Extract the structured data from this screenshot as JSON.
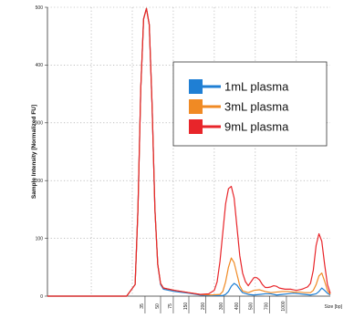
{
  "chart_data": {
    "type": "line",
    "ylabel": "Sample Intensity [Normalized FU]",
    "xlabel": "Size [bp]",
    "y_ticks": [
      "0",
      "100",
      "200",
      "300",
      "400",
      "500"
    ],
    "x_ticks": [
      "35",
      "50",
      "75",
      "150",
      "200",
      "300",
      "400",
      "500",
      "700",
      "1000"
    ],
    "ylim": [
      0,
      500
    ],
    "xlim": [
      0,
      100
    ],
    "grid": true,
    "legend_position": "top-right",
    "series": [
      {
        "name": "1mL plasma",
        "color": "#1f7fd4",
        "points": [
          [
            0,
            0
          ],
          [
            10,
            0
          ],
          [
            20,
            0
          ],
          [
            28,
            0
          ],
          [
            31,
            20
          ],
          [
            32,
            150
          ],
          [
            33,
            360
          ],
          [
            34,
            480
          ],
          [
            35,
            498
          ],
          [
            36,
            470
          ],
          [
            37,
            330
          ],
          [
            38,
            150
          ],
          [
            39,
            55
          ],
          [
            40,
            20
          ],
          [
            41,
            12
          ],
          [
            45,
            8
          ],
          [
            50,
            5
          ],
          [
            54,
            2
          ],
          [
            58,
            1
          ],
          [
            62,
            1
          ],
          [
            63,
            3
          ],
          [
            64,
            8
          ],
          [
            65,
            17
          ],
          [
            66,
            22
          ],
          [
            67,
            19
          ],
          [
            68,
            12
          ],
          [
            69,
            6
          ],
          [
            71,
            3
          ],
          [
            73,
            2
          ],
          [
            75,
            3
          ],
          [
            77,
            4
          ],
          [
            79,
            4
          ],
          [
            81,
            2
          ],
          [
            83,
            3
          ],
          [
            85,
            4
          ],
          [
            87,
            5
          ],
          [
            89,
            4
          ],
          [
            91,
            3
          ],
          [
            93,
            2
          ],
          [
            95,
            4
          ],
          [
            96,
            8
          ],
          [
            97,
            14
          ],
          [
            98,
            10
          ],
          [
            99,
            5
          ],
          [
            100,
            2
          ]
        ]
      },
      {
        "name": "3mL plasma",
        "color": "#f08a24",
        "points": [
          [
            0,
            0
          ],
          [
            10,
            0
          ],
          [
            20,
            0
          ],
          [
            28,
            0
          ],
          [
            31,
            20
          ],
          [
            32,
            150
          ],
          [
            33,
            360
          ],
          [
            34,
            480
          ],
          [
            35,
            498
          ],
          [
            36,
            470
          ],
          [
            37,
            330
          ],
          [
            38,
            150
          ],
          [
            39,
            55
          ],
          [
            40,
            22
          ],
          [
            41,
            14
          ],
          [
            45,
            10
          ],
          [
            50,
            6
          ],
          [
            54,
            3
          ],
          [
            58,
            2
          ],
          [
            61,
            3
          ],
          [
            62,
            8
          ],
          [
            63,
            25
          ],
          [
            64,
            50
          ],
          [
            65,
            66
          ],
          [
            66,
            58
          ],
          [
            67,
            38
          ],
          [
            68,
            18
          ],
          [
            69,
            9
          ],
          [
            71,
            6
          ],
          [
            73,
            10
          ],
          [
            75,
            11
          ],
          [
            77,
            8
          ],
          [
            79,
            6
          ],
          [
            81,
            7
          ],
          [
            83,
            8
          ],
          [
            85,
            8
          ],
          [
            87,
            7
          ],
          [
            89,
            7
          ],
          [
            91,
            6
          ],
          [
            93,
            6
          ],
          [
            94,
            10
          ],
          [
            95,
            20
          ],
          [
            96,
            35
          ],
          [
            97,
            40
          ],
          [
            98,
            26
          ],
          [
            99,
            10
          ],
          [
            100,
            3
          ]
        ]
      },
      {
        "name": "9mL plasma",
        "color": "#e8252a",
        "points": [
          [
            0,
            0
          ],
          [
            10,
            0
          ],
          [
            20,
            0
          ],
          [
            28,
            0
          ],
          [
            31,
            20
          ],
          [
            32,
            150
          ],
          [
            33,
            360
          ],
          [
            34,
            480
          ],
          [
            35,
            498
          ],
          [
            36,
            470
          ],
          [
            37,
            330
          ],
          [
            38,
            150
          ],
          [
            39,
            55
          ],
          [
            40,
            22
          ],
          [
            41,
            14
          ],
          [
            45,
            10
          ],
          [
            50,
            6
          ],
          [
            54,
            3
          ],
          [
            57,
            4
          ],
          [
            59,
            10
          ],
          [
            60,
            25
          ],
          [
            61,
            60
          ],
          [
            62,
            110
          ],
          [
            63,
            160
          ],
          [
            64,
            186
          ],
          [
            65,
            190
          ],
          [
            66,
            170
          ],
          [
            67,
            120
          ],
          [
            68,
            70
          ],
          [
            69,
            40
          ],
          [
            70,
            25
          ],
          [
            71,
            18
          ],
          [
            72,
            25
          ],
          [
            73,
            32
          ],
          [
            74,
            32
          ],
          [
            75,
            28
          ],
          [
            76,
            20
          ],
          [
            77,
            15
          ],
          [
            78,
            15
          ],
          [
            79,
            16
          ],
          [
            80,
            18
          ],
          [
            81,
            17
          ],
          [
            82,
            14
          ],
          [
            83,
            13
          ],
          [
            84,
            12
          ],
          [
            85,
            12
          ],
          [
            86,
            12
          ],
          [
            87,
            11
          ],
          [
            88,
            10
          ],
          [
            89,
            11
          ],
          [
            90,
            12
          ],
          [
            91,
            14
          ],
          [
            92,
            16
          ],
          [
            93,
            22
          ],
          [
            94,
            45
          ],
          [
            95,
            88
          ],
          [
            96,
            108
          ],
          [
            97,
            95
          ],
          [
            98,
            55
          ],
          [
            99,
            20
          ],
          [
            100,
            5
          ]
        ]
      }
    ]
  }
}
